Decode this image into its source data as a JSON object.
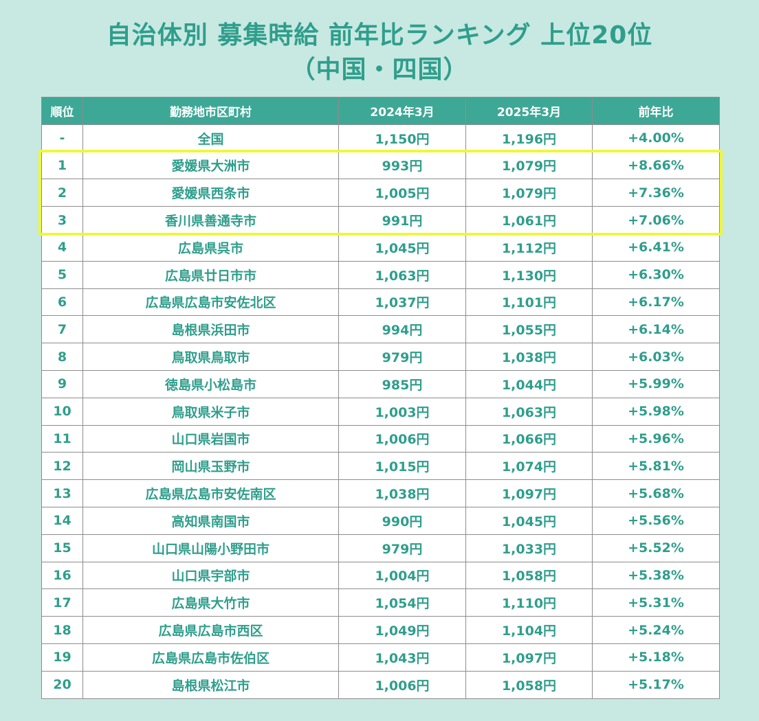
{
  "title": {
    "line1": "自治体別 募集時給 前年比ランキング 上位20位",
    "line2": "（中国・四国）"
  },
  "colors": {
    "background": "#c8e8e2",
    "accent": "#2f9e8c",
    "header": "#3ea896",
    "highlight": "#eef73b"
  },
  "chart_data": {
    "type": "table",
    "columns": [
      "順位",
      "勤務地市区町村",
      "2024年3月",
      "2025年3月",
      "前年比"
    ],
    "rows": [
      {
        "rank": "-",
        "city": "全国",
        "y2024": "1,150円",
        "y2025": "1,196円",
        "yoy": "+4.00%"
      },
      {
        "rank": "1",
        "city": "愛媛県大洲市",
        "y2024": "993円",
        "y2025": "1,079円",
        "yoy": "+8.66%"
      },
      {
        "rank": "2",
        "city": "愛媛県西条市",
        "y2024": "1,005円",
        "y2025": "1,079円",
        "yoy": "+7.36%"
      },
      {
        "rank": "3",
        "city": "香川県善通寺市",
        "y2024": "991円",
        "y2025": "1,061円",
        "yoy": "+7.06%"
      },
      {
        "rank": "4",
        "city": "広島県呉市",
        "y2024": "1,045円",
        "y2025": "1,112円",
        "yoy": "+6.41%"
      },
      {
        "rank": "5",
        "city": "広島県廿日市市",
        "y2024": "1,063円",
        "y2025": "1,130円",
        "yoy": "+6.30%"
      },
      {
        "rank": "6",
        "city": "広島県広島市安佐北区",
        "y2024": "1,037円",
        "y2025": "1,101円",
        "yoy": "+6.17%"
      },
      {
        "rank": "7",
        "city": "島根県浜田市",
        "y2024": "994円",
        "y2025": "1,055円",
        "yoy": "+6.14%"
      },
      {
        "rank": "8",
        "city": "鳥取県鳥取市",
        "y2024": "979円",
        "y2025": "1,038円",
        "yoy": "+6.03%"
      },
      {
        "rank": "9",
        "city": "徳島県小松島市",
        "y2024": "985円",
        "y2025": "1,044円",
        "yoy": "+5.99%"
      },
      {
        "rank": "10",
        "city": "鳥取県米子市",
        "y2024": "1,003円",
        "y2025": "1,063円",
        "yoy": "+5.98%"
      },
      {
        "rank": "11",
        "city": "山口県岩国市",
        "y2024": "1,006円",
        "y2025": "1,066円",
        "yoy": "+5.96%"
      },
      {
        "rank": "12",
        "city": "岡山県玉野市",
        "y2024": "1,015円",
        "y2025": "1,074円",
        "yoy": "+5.81%"
      },
      {
        "rank": "13",
        "city": "広島県広島市安佐南区",
        "y2024": "1,038円",
        "y2025": "1,097円",
        "yoy": "+5.68%"
      },
      {
        "rank": "14",
        "city": "高知県南国市",
        "y2024": "990円",
        "y2025": "1,045円",
        "yoy": "+5.56%"
      },
      {
        "rank": "15",
        "city": "山口県山陽小野田市",
        "y2024": "979円",
        "y2025": "1,033円",
        "yoy": "+5.52%"
      },
      {
        "rank": "16",
        "city": "山口県宇部市",
        "y2024": "1,004円",
        "y2025": "1,058円",
        "yoy": "+5.38%"
      },
      {
        "rank": "17",
        "city": "広島県大竹市",
        "y2024": "1,054円",
        "y2025": "1,110円",
        "yoy": "+5.31%"
      },
      {
        "rank": "18",
        "city": "広島県広島市西区",
        "y2024": "1,049円",
        "y2025": "1,104円",
        "yoy": "+5.24%"
      },
      {
        "rank": "19",
        "city": "広島県広島市佐伯区",
        "y2024": "1,043円",
        "y2025": "1,097円",
        "yoy": "+5.18%"
      },
      {
        "rank": "20",
        "city": "島根県松江市",
        "y2024": "1,006円",
        "y2025": "1,058円",
        "yoy": "+5.17%"
      }
    ],
    "highlighted_ranks": [
      "1",
      "2",
      "3"
    ]
  }
}
